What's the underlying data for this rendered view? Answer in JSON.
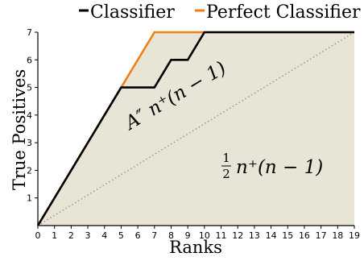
{
  "chart_data": {
    "type": "line",
    "xlabel": "Ranks",
    "ylabel": "True Positives",
    "xlim": [
      0,
      19
    ],
    "ylim": [
      0,
      7
    ],
    "xticks": [
      "0",
      "1",
      "2",
      "3",
      "4",
      "5",
      "6",
      "7",
      "8",
      "9",
      "10",
      "11",
      "12",
      "13",
      "14",
      "15",
      "16",
      "17",
      "18",
      "19"
    ],
    "yticks": [
      "1",
      "2",
      "3",
      "4",
      "5",
      "6",
      "7"
    ],
    "grid": false,
    "legend_position": "top",
    "series": [
      {
        "name": "Classifier",
        "color": "#000000",
        "x": [
          0,
          5,
          7,
          8,
          9,
          10,
          19
        ],
        "y": [
          0,
          5,
          5,
          6,
          6,
          7,
          7
        ]
      },
      {
        "name": "Perfect Classifier",
        "color": "#f07f16",
        "x": [
          0,
          7,
          19
        ],
        "y": [
          0,
          7,
          7
        ]
      },
      {
        "name": "",
        "color": "#999999",
        "style": "dotted",
        "x": [
          0,
          19
        ],
        "y": [
          0,
          7
        ]
      }
    ],
    "shaded_area_color": "#e9e5d6",
    "annotations": {
      "upper": "A″ n⁺(n − 1)",
      "lower_frac_num": "1",
      "lower_frac_den": "2",
      "lower_rest": "n⁺(n − 1)"
    }
  }
}
